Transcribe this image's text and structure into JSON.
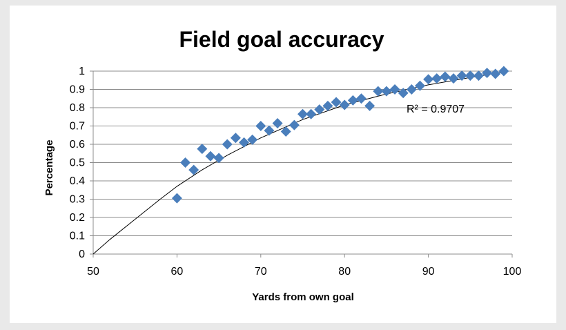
{
  "chart_data": {
    "type": "scatter",
    "title": "Field goal accuracy",
    "xlabel": "Yards from own goal",
    "ylabel": "Percentage",
    "xlim": [
      50,
      100
    ],
    "ylim": [
      0,
      1
    ],
    "x_ticks": [
      "50",
      "60",
      "70",
      "80",
      "90",
      "100"
    ],
    "y_ticks": [
      "0",
      "0.1",
      "0.2",
      "0.3",
      "0.4",
      "0.5",
      "0.6",
      "0.7",
      "0.8",
      "0.9",
      "1"
    ],
    "grid": "horizontal",
    "marker_color": "#4a7ebb",
    "trendline_label": "R² = 0.9707",
    "points": [
      [
        60,
        0.305
      ],
      [
        61,
        0.5
      ],
      [
        62,
        0.46
      ],
      [
        63,
        0.575
      ],
      [
        64,
        0.535
      ],
      [
        65,
        0.525
      ],
      [
        66,
        0.6
      ],
      [
        67,
        0.635
      ],
      [
        68,
        0.61
      ],
      [
        69,
        0.625
      ],
      [
        70,
        0.7
      ],
      [
        71,
        0.675
      ],
      [
        72,
        0.715
      ],
      [
        73,
        0.67
      ],
      [
        74,
        0.705
      ],
      [
        75,
        0.765
      ],
      [
        76,
        0.765
      ],
      [
        77,
        0.79
      ],
      [
        78,
        0.81
      ],
      [
        79,
        0.83
      ],
      [
        80,
        0.815
      ],
      [
        81,
        0.84
      ],
      [
        82,
        0.85
      ],
      [
        83,
        0.81
      ],
      [
        84,
        0.89
      ],
      [
        85,
        0.89
      ],
      [
        86,
        0.9
      ],
      [
        87,
        0.88
      ],
      [
        88,
        0.9
      ],
      [
        89,
        0.92
      ],
      [
        90,
        0.955
      ],
      [
        91,
        0.96
      ],
      [
        92,
        0.97
      ],
      [
        93,
        0.96
      ],
      [
        94,
        0.975
      ],
      [
        95,
        0.975
      ],
      [
        96,
        0.975
      ],
      [
        97,
        0.99
      ],
      [
        98,
        0.985
      ],
      [
        99,
        1.0
      ]
    ],
    "trendline": [
      [
        50,
        0.0
      ],
      [
        52,
        0.08
      ],
      [
        55,
        0.19
      ],
      [
        58,
        0.3
      ],
      [
        60,
        0.37
      ],
      [
        63,
        0.46
      ],
      [
        66,
        0.54
      ],
      [
        70,
        0.635
      ],
      [
        75,
        0.735
      ],
      [
        80,
        0.815
      ],
      [
        85,
        0.875
      ],
      [
        90,
        0.925
      ],
      [
        95,
        0.965
      ],
      [
        99,
        0.995
      ]
    ]
  }
}
